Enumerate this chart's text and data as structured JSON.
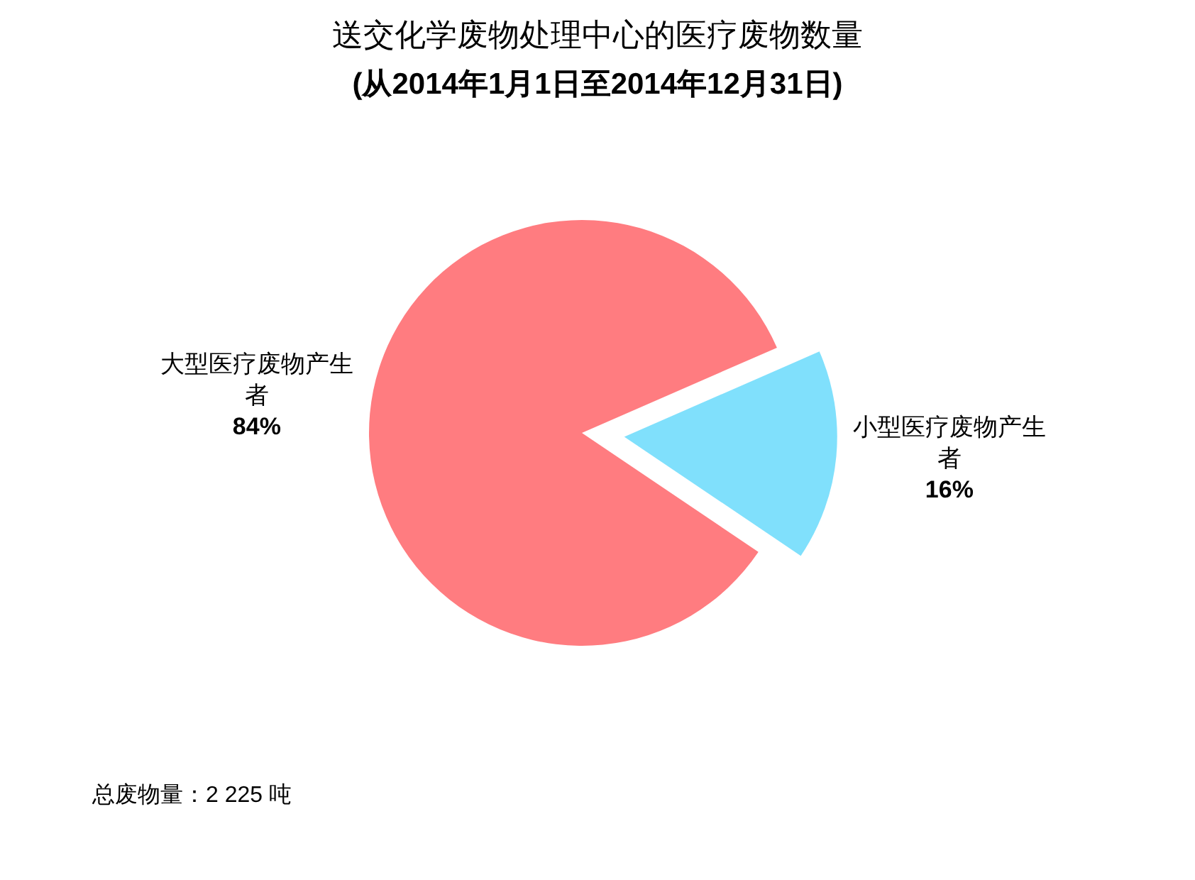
{
  "chart_data": {
    "type": "pie",
    "title": "送交化学废物处理中心的医疗废物数量",
    "subtitle": "(从2014年1月1日至2014年12月31日)",
    "categories": [
      "大型医疗废物产生者",
      "小型医疗废物产生者"
    ],
    "values": [
      84,
      16
    ],
    "colors": [
      "#ff7c80",
      "#80e0fc"
    ],
    "value_labels": [
      "84%",
      "16%"
    ],
    "annotations": [
      "总废物量：2 225 吨"
    ]
  }
}
